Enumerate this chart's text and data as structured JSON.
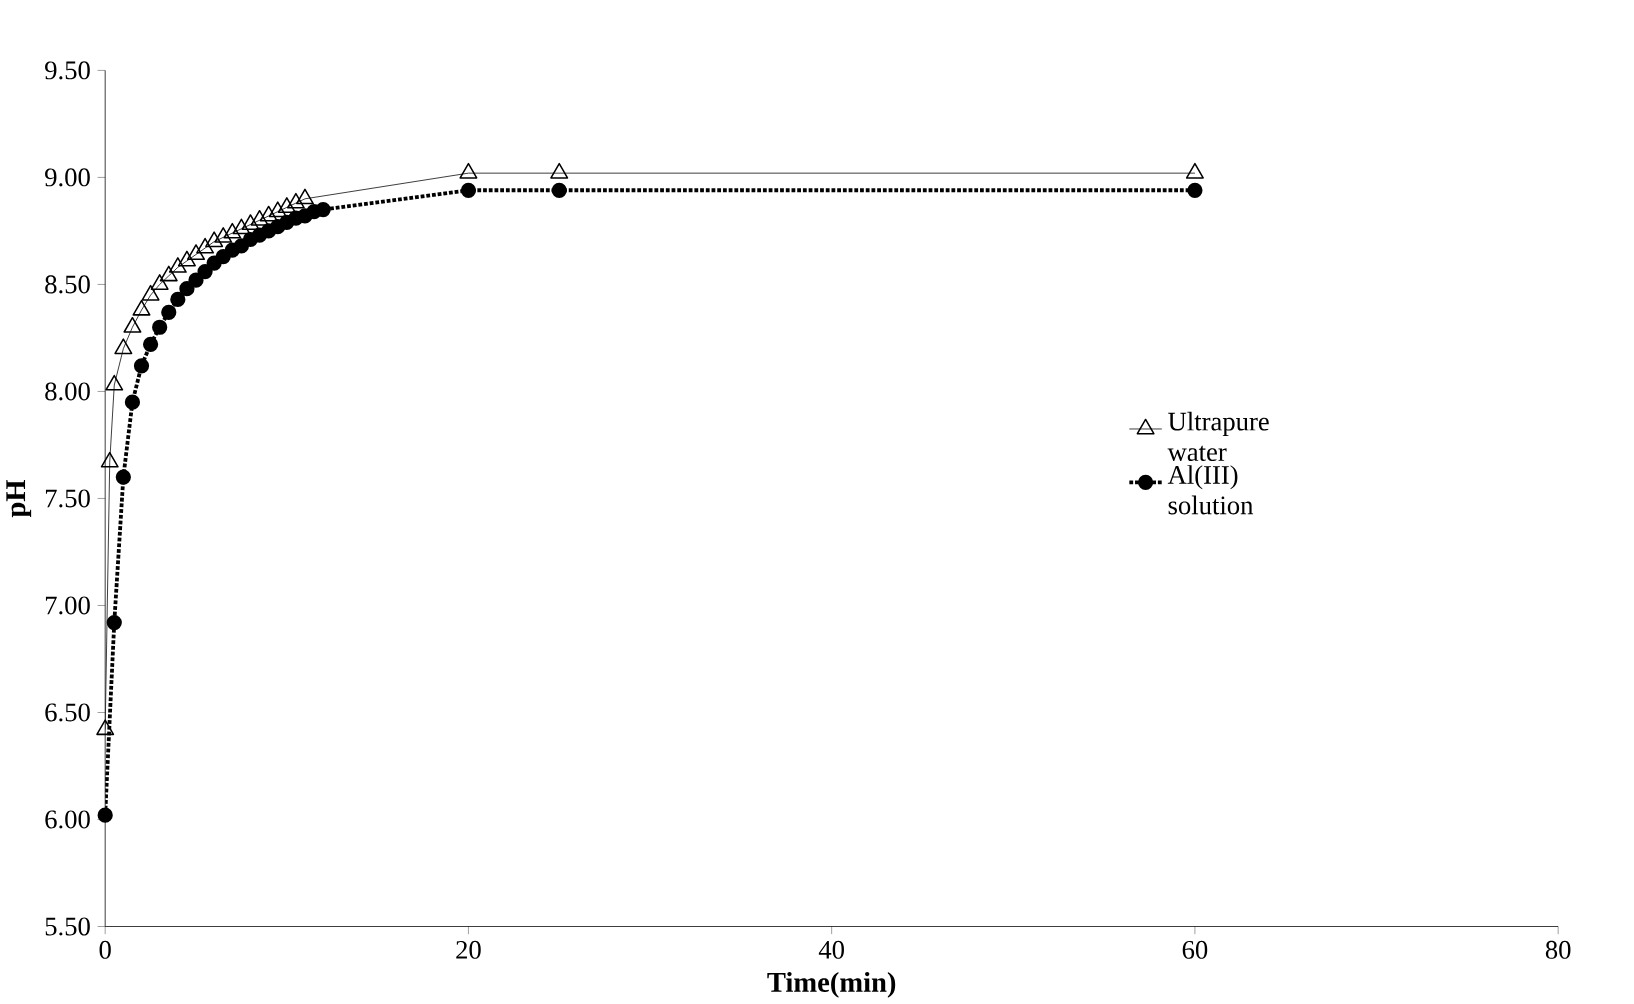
{
  "chart_data": {
    "type": "line",
    "xlabel": "Time(min)",
    "ylabel": "pH",
    "xlim": [
      0,
      80
    ],
    "xticks": [
      0,
      20,
      40,
      60,
      80
    ],
    "ylim": [
      5.5,
      9.5
    ],
    "yticks": [
      {
        "value": 5.5,
        "label": "5.50"
      },
      {
        "value": 6,
        "label": "6.00"
      },
      {
        "value": 6.5,
        "label": "6.50"
      },
      {
        "value": 7,
        "label": "7.00"
      },
      {
        "value": 7.5,
        "label": "7.50"
      },
      {
        "value": 8,
        "label": "8.00"
      },
      {
        "value": 8.5,
        "label": "8.50"
      },
      {
        "value": 9,
        "label": "9.00"
      },
      {
        "value": 9.5,
        "label": "9.50"
      }
    ],
    "grid": false,
    "legend": "right",
    "series": [
      {
        "name": "Ultrapure water",
        "color": "#000000",
        "marker": "triangle",
        "line_style": "solid",
        "x": [
          0,
          0.25,
          0.5,
          1,
          1.5,
          2,
          2.5,
          3,
          3.5,
          4,
          4.5,
          5,
          5.5,
          6,
          6.5,
          7,
          7.5,
          8,
          8.5,
          9,
          9.5,
          10,
          10.5,
          11,
          20,
          25,
          60
        ],
        "values": [
          6.42,
          7.67,
          8.03,
          8.2,
          8.3,
          8.38,
          8.45,
          8.5,
          8.54,
          8.58,
          8.61,
          8.64,
          8.67,
          8.7,
          8.72,
          8.74,
          8.76,
          8.78,
          8.8,
          8.82,
          8.84,
          8.86,
          8.88,
          8.9,
          9.02,
          9.02,
          9.02
        ]
      },
      {
        "name": "Al(III) solution",
        "color": "#000000",
        "marker": "circle",
        "line_style": "dotted",
        "x": [
          0,
          0.5,
          1,
          1.5,
          2,
          2.5,
          3,
          3.5,
          4,
          4.5,
          5,
          5.5,
          6,
          6.5,
          7,
          7.5,
          8,
          8.5,
          9,
          9.5,
          10,
          10.5,
          11,
          11.5,
          12,
          20,
          25,
          60
        ],
        "values": [
          6.02,
          6.92,
          7.6,
          7.95,
          8.12,
          8.22,
          8.3,
          8.37,
          8.43,
          8.48,
          8.52,
          8.56,
          8.6,
          8.63,
          8.66,
          8.68,
          8.71,
          8.73,
          8.75,
          8.77,
          8.79,
          8.81,
          8.82,
          8.84,
          8.85,
          8.94,
          8.94,
          8.94
        ]
      }
    ]
  }
}
